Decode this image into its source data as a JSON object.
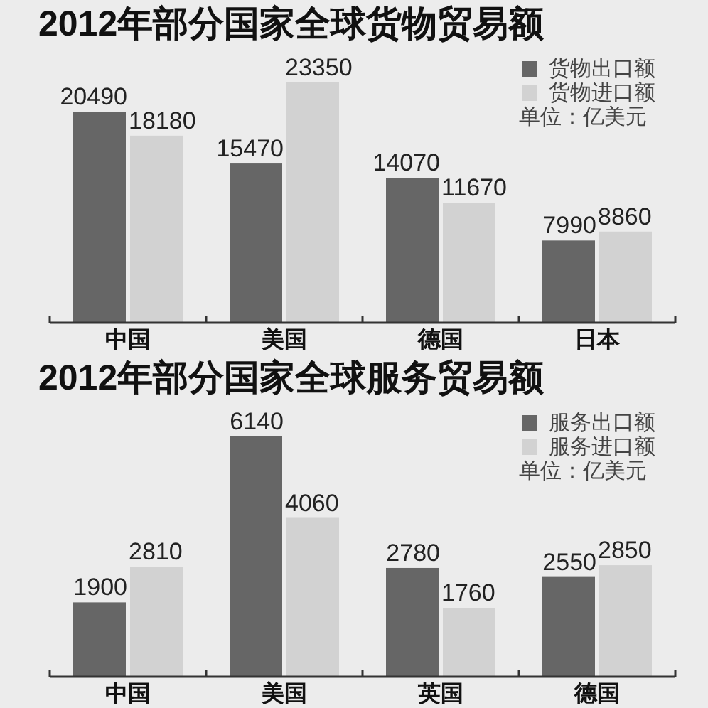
{
  "chart_data": [
    {
      "type": "bar",
      "title": "2012年部分国家全球货物贸易额",
      "categories": [
        "中国",
        "美国",
        "德国",
        "日本"
      ],
      "series": [
        {
          "name": "货物出口额",
          "color": "#666666",
          "values": [
            20490,
            15470,
            14070,
            7990
          ]
        },
        {
          "name": "货物进口额",
          "color": "#d2d2d2",
          "values": [
            18180,
            23350,
            11670,
            8860
          ]
        }
      ],
      "data_labels": true,
      "legend": "top right",
      "annotations": [
        "单位：亿美元"
      ]
    },
    {
      "type": "bar",
      "title": "2012年部分国家全球服务贸易额",
      "categories": [
        "中国",
        "美国",
        "英国",
        "德国"
      ],
      "series": [
        {
          "name": "服务出口额",
          "color": "#666666",
          "values": [
            1900,
            6140,
            2780,
            2550
          ]
        },
        {
          "name": "服务进口额",
          "color": "#d2d2d2",
          "values": [
            2810,
            4060,
            1760,
            2850
          ]
        }
      ],
      "data_labels": true,
      "legend": "top right",
      "annotations": [
        "单位：亿美元"
      ]
    }
  ]
}
